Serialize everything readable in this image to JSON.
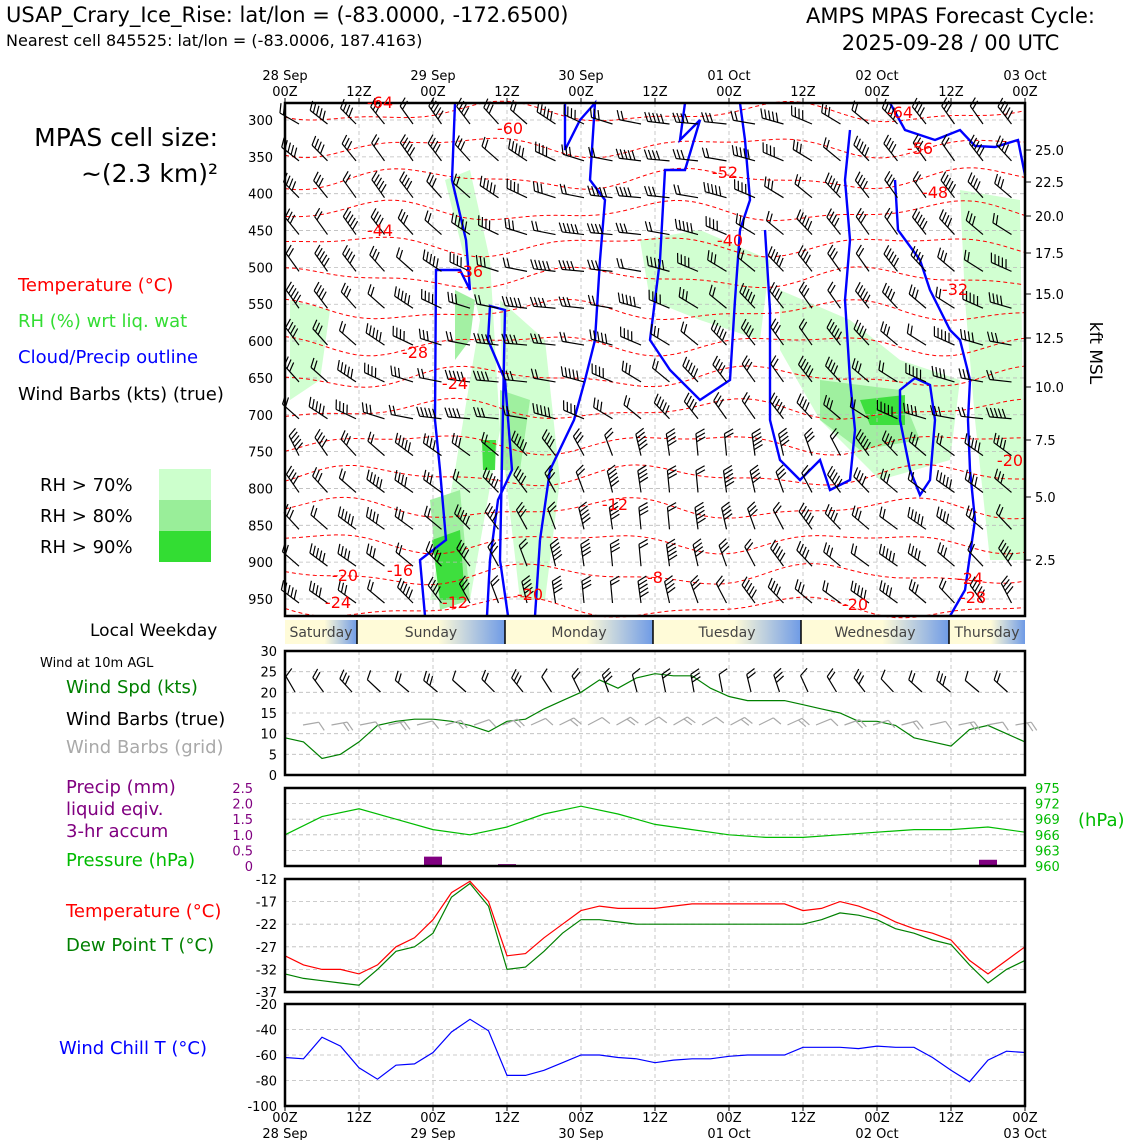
{
  "header": {
    "site_line": "USAP_Crary_Ice_Rise: lat/lon = (-83.0000, -172.6500)",
    "cell_line": "Nearest cell 845525: lat/lon = (-83.0006, 187.4163)",
    "forecast_label": "AMPS MPAS Forecast Cycle:",
    "forecast_cycle": "2025-09-28 / 00 UTC",
    "cell_size_label": "MPAS cell size:",
    "cell_size_value": "~(2.3 km)²"
  },
  "colors": {
    "temperature": "#ff0000",
    "rh": "#33dd33",
    "cloud": "#0000ff",
    "barbs": "#000000",
    "wind_speed": "#008000",
    "grid_barbs": "#a9a9a9",
    "precip": "#800080",
    "pressure": "#00bb00",
    "dewpoint": "#008000",
    "wind_chill": "#0000ff",
    "rh70": "#ccffcc",
    "rh80": "#99ee99",
    "rh90": "#33dd33"
  },
  "time_axis": {
    "labels": [
      "28 Sep\n00Z",
      "12Z",
      "29 Sep\n00Z",
      "12Z",
      "30 Sep\n00Z",
      "12Z",
      "01 Oct\n00Z",
      "12Z",
      "02 Oct\n00Z",
      "12Z",
      "03 Oct\n00Z"
    ],
    "bottom_labels": [
      "00Z\n28 Sep",
      "12Z",
      "00Z\n29 Sep",
      "12Z",
      "00Z\n30 Sep",
      "12Z",
      "00Z\n01 Oct",
      "12Z",
      "00Z\n02 Oct",
      "12Z",
      "00Z\n03 Oct"
    ],
    "hours_total": 120
  },
  "weekday_bar": {
    "label": "Local Weekday",
    "days": [
      "Saturday",
      "Sunday",
      "Monday",
      "Tuesday",
      "Wednesday",
      "Thursday"
    ]
  },
  "upper_panel": {
    "legend": {
      "temperature": "Temperature (°C)",
      "rh": "RH (%) wrt liq. wat",
      "cloud": "Cloud/Precip outline",
      "barbs": "Wind Barbs (kts) (true)"
    },
    "rh_legend": [
      "RH > 70%",
      "RH > 80%",
      "RH > 90%"
    ],
    "y_ticks": [
      "300",
      "350",
      "400",
      "450",
      "500",
      "550",
      "600",
      "650",
      "700",
      "750",
      "800",
      "850",
      "900",
      "950"
    ],
    "right_ticks": [
      "25.0",
      "22.5",
      "20.0",
      "17.5",
      "15.0",
      "12.5",
      "10.0",
      "7.5",
      "5.0",
      "2.5"
    ],
    "right_label": "kft MSL",
    "contour_labels": [
      "-60",
      "-64",
      "-64",
      "-56",
      "-52",
      "-48",
      "-44",
      "-40",
      "-36",
      "-32",
      "-28",
      "-24",
      "-20",
      "-16",
      "-12",
      "-8",
      "-20",
      "-24",
      "-12",
      "-20",
      "-20",
      "-24",
      "-28"
    ]
  },
  "wind_panel": {
    "caption": "Wind at 10m AGL",
    "legend": {
      "speed": "Wind Spd (kts)",
      "barbs": "Wind Barbs (true)",
      "grid": "Wind Barbs (grid)"
    },
    "y_ticks": [
      "30",
      "25",
      "20",
      "15",
      "10",
      "5",
      "0"
    ]
  },
  "precip_panel": {
    "legend": {
      "precip": "Precip (mm)",
      "liquid": "liquid eqiv.",
      "accum": "3-hr accum",
      "pressure": "Pressure (hPa)"
    },
    "left_ticks": [
      "2.5",
      "2.0",
      "1.5",
      "1.0",
      "0.5",
      "0"
    ],
    "right_ticks": [
      "975",
      "972",
      "969",
      "966",
      "963",
      "960"
    ],
    "right_label": "(hPa)"
  },
  "temp_panel": {
    "legend": {
      "temperature": "Temperature (°C)",
      "dewpoint": "Dew Point T (°C)"
    },
    "y_ticks": [
      "-12",
      "-17",
      "-22",
      "-27",
      "-32",
      "-37"
    ]
  },
  "chill_panel": {
    "legend": "Wind Chill T (°C)",
    "y_ticks": [
      "-20",
      "-40",
      "-60",
      "-80",
      "-100"
    ]
  },
  "chart_data": [
    {
      "type": "line",
      "title": "Wind at 10m AGL",
      "ylabel": "Wind Spd (kts)",
      "ylim": [
        0,
        30
      ],
      "x": [
        0,
        3,
        6,
        9,
        12,
        15,
        18,
        21,
        24,
        27,
        30,
        33,
        36,
        39,
        42,
        45,
        48,
        51,
        54,
        57,
        60,
        63,
        66,
        69,
        72,
        75,
        78,
        81,
        84,
        87,
        90,
        93,
        96,
        99,
        102,
        105,
        108,
        111,
        114,
        117,
        120
      ],
      "series": [
        {
          "name": "Wind Spd (kts)",
          "values": [
            9,
            8,
            4,
            5,
            8,
            12,
            13,
            13.5,
            13.5,
            13,
            12,
            10.5,
            13,
            13.5,
            16,
            18,
            20,
            23,
            21,
            23.5,
            24.5,
            24,
            24,
            21,
            19,
            18,
            18,
            18,
            17,
            16,
            15,
            13,
            13,
            12,
            9,
            8,
            7,
            11,
            12,
            10,
            8
          ]
        }
      ]
    },
    {
      "type": "line",
      "title": "Precip / Pressure",
      "ylabel": "Pressure (hPa)",
      "ylim": [
        960,
        975
      ],
      "x": [
        0,
        6,
        12,
        18,
        24,
        30,
        36,
        42,
        48,
        54,
        60,
        66,
        72,
        78,
        84,
        90,
        96,
        102,
        108,
        114,
        120
      ],
      "series": [
        {
          "name": "Pressure (hPa)",
          "values": [
            966,
            969.5,
            971,
            969,
            967,
            966,
            967.5,
            970,
            971.5,
            970,
            968,
            967,
            966,
            965.5,
            965.5,
            966,
            966.5,
            967,
            967,
            967.5,
            966.5
          ]
        },
        {
          "name": "Precip (mm)",
          "values": [
            0,
            0,
            0,
            0,
            0.3,
            0,
            0.06,
            0,
            0,
            0,
            0,
            0,
            0,
            0,
            0,
            0,
            0,
            0,
            0,
            0.2,
            0
          ]
        }
      ]
    },
    {
      "type": "line",
      "title": "Temperature / Dew Point",
      "ylabel": "°C",
      "ylim": [
        -37,
        -12
      ],
      "x": [
        0,
        3,
        6,
        9,
        12,
        15,
        18,
        21,
        24,
        27,
        30,
        33,
        36,
        39,
        42,
        45,
        48,
        51,
        54,
        57,
        60,
        63,
        66,
        69,
        72,
        75,
        78,
        81,
        84,
        87,
        90,
        93,
        96,
        99,
        102,
        105,
        108,
        111,
        114,
        117,
        120
      ],
      "series": [
        {
          "name": "Temperature (°C)",
          "values": [
            -29,
            -31,
            -32,
            -32,
            -33,
            -31,
            -27,
            -25,
            -21,
            -15,
            -12.5,
            -17,
            -29,
            -28.5,
            -25,
            -22,
            -19,
            -18,
            -18.5,
            -18.5,
            -18.5,
            -18,
            -17.5,
            -17.5,
            -17.5,
            -17.5,
            -17.5,
            -17.5,
            -19,
            -18.5,
            -17,
            -18,
            -19.5,
            -21.5,
            -23,
            -24,
            -25.5,
            -30,
            -33,
            -30,
            -27
          ]
        },
        {
          "name": "Dew Point T (°C)",
          "values": [
            -33,
            -34,
            -34.5,
            -35,
            -35.5,
            -32,
            -28,
            -27,
            -24,
            -16,
            -13,
            -18,
            -32,
            -31.5,
            -28,
            -24,
            -21,
            -21,
            -21.5,
            -22,
            -22,
            -22,
            -22,
            -22,
            -22,
            -22,
            -22,
            -22,
            -22,
            -21,
            -19.5,
            -20,
            -21,
            -23,
            -24,
            -25.5,
            -26.5,
            -31,
            -35,
            -32,
            -30
          ]
        }
      ]
    },
    {
      "type": "line",
      "title": "Wind Chill",
      "ylabel": "Wind Chill T (°C)",
      "ylim": [
        -100,
        -20
      ],
      "x": [
        0,
        3,
        6,
        9,
        12,
        15,
        18,
        21,
        24,
        27,
        30,
        33,
        36,
        39,
        42,
        45,
        48,
        51,
        54,
        57,
        60,
        63,
        66,
        69,
        72,
        75,
        78,
        81,
        84,
        87,
        90,
        93,
        96,
        99,
        102,
        105,
        108,
        111,
        114,
        117,
        120
      ],
      "series": [
        {
          "name": "Wind Chill T (°C)",
          "values": [
            -62,
            -63,
            -46,
            -53,
            -70,
            -79,
            -68,
            -67,
            -58,
            -42,
            -32,
            -41,
            -76,
            -76,
            -72,
            -66,
            -60,
            -60,
            -62,
            -63,
            -66,
            -64,
            -63,
            -63,
            -61,
            -60,
            -60,
            -60,
            -54,
            -54,
            -54,
            -55,
            -53,
            -54,
            -54,
            -62,
            -72,
            -81,
            -64,
            -57,
            -58
          ]
        }
      ]
    }
  ]
}
